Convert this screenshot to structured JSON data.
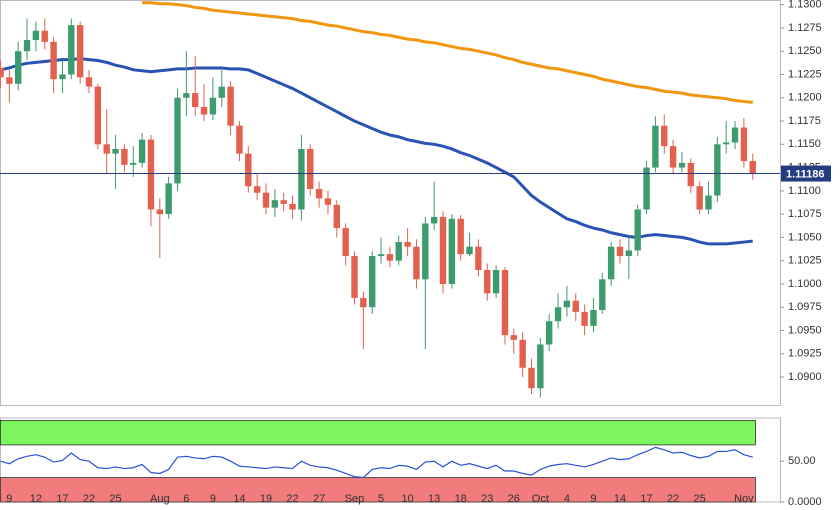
{
  "chart_data": [
    {
      "type": "candlestick",
      "categories": [
        null,
        "9",
        null,
        null,
        "12",
        null,
        null,
        "17",
        null,
        null,
        "22",
        null,
        null,
        "25",
        null,
        null,
        null,
        null,
        "Aug",
        null,
        null,
        "6",
        null,
        null,
        "9",
        null,
        null,
        "14",
        null,
        null,
        "19",
        null,
        null,
        "22",
        null,
        null,
        "27",
        null,
        null,
        null,
        "Sep",
        null,
        null,
        "5",
        null,
        null,
        "10",
        null,
        null,
        "13",
        null,
        null,
        "18",
        null,
        null,
        "23",
        null,
        null,
        "26",
        null,
        null,
        "Oct",
        null,
        null,
        "4",
        null,
        null,
        "9",
        null,
        null,
        "14",
        null,
        null,
        "17",
        null,
        null,
        "22",
        null,
        null,
        "25",
        null,
        null,
        null,
        null,
        "Nov",
        null
      ],
      "open": [
        1.1232,
        1.1222,
        1.1215,
        1.125,
        1.1262,
        1.1272,
        1.126,
        1.122,
        1.1225,
        1.1278,
        1.1222,
        1.1212,
        1.115,
        1.114,
        1.1145,
        1.1128,
        1.113,
        1.1155,
        1.108,
        1.1075,
        1.1108,
        1.12,
        1.1205,
        1.119,
        1.1182,
        1.12,
        1.1212,
        1.117,
        1.114,
        1.1105,
        1.1098,
        1.1082,
        1.109,
        1.1086,
        1.108,
        1.1145,
        1.1102,
        1.1092,
        1.1085,
        1.106,
        1.103,
        1.0985,
        1.0975,
        1.103,
        1.1032,
        1.1025,
        1.1045,
        1.104,
        1.1005,
        1.1065,
        1.1072,
        1.1,
        1.107,
        1.1032,
        1.104,
        1.1015,
        1.099,
        1.1015,
        1.0945,
        1.094,
        1.091,
        1.0888,
        1.0935,
        1.096,
        1.0975,
        1.0982,
        1.097,
        1.0955,
        1.0972,
        1.1005,
        1.104,
        1.103,
        1.1036,
        1.108,
        1.1125,
        1.117,
        1.1148,
        1.1125,
        1.113,
        1.1105,
        1.108,
        1.1095,
        1.115,
        1.1152,
        1.1168,
        1.1132
      ],
      "high": [
        1.124,
        1.123,
        1.126,
        1.1285,
        1.1282,
        1.1285,
        1.1265,
        1.124,
        1.1285,
        1.1282,
        1.123,
        1.1215,
        1.1188,
        1.116,
        1.115,
        1.1148,
        1.1162,
        1.116,
        1.1092,
        1.1115,
        1.121,
        1.125,
        1.1245,
        1.1215,
        1.1222,
        1.123,
        1.1218,
        1.1175,
        1.1148,
        1.1118,
        1.1108,
        1.1102,
        1.1098,
        1.1095,
        1.116,
        1.115,
        1.111,
        1.11,
        1.109,
        1.1065,
        1.1035,
        1.0992,
        1.1035,
        1.105,
        1.104,
        1.1052,
        1.106,
        1.1048,
        1.1072,
        1.111,
        1.1078,
        1.1075,
        1.1074,
        1.1055,
        1.1048,
        1.1022,
        1.102,
        1.1018,
        1.0952,
        1.0948,
        1.092,
        1.0942,
        1.0968,
        1.099,
        1.0998,
        1.099,
        1.0978,
        1.0985,
        1.1012,
        1.1045,
        1.1048,
        1.105,
        1.1085,
        1.1132,
        1.118,
        1.1182,
        1.1155,
        1.1142,
        1.1135,
        1.111,
        1.111,
        1.1158,
        1.1175,
        1.1175,
        1.1178,
        1.114
      ],
      "low": [
        1.121,
        1.1195,
        1.1208,
        1.124,
        1.125,
        1.1252,
        1.1205,
        1.1205,
        1.122,
        1.1215,
        1.1205,
        1.1145,
        1.1118,
        1.1102,
        1.112,
        1.1115,
        1.1125,
        1.1062,
        1.1028,
        1.107,
        1.11,
        1.118,
        1.118,
        1.1175,
        1.1176,
        1.119,
        1.116,
        1.1132,
        1.1098,
        1.109,
        1.1075,
        1.1072,
        1.1078,
        1.107,
        1.1068,
        1.1095,
        1.1082,
        1.1075,
        1.105,
        1.102,
        1.0978,
        1.093,
        1.0968,
        1.1022,
        1.1018,
        1.102,
        1.103,
        1.0995,
        1.093,
        1.1058,
        1.099,
        1.0995,
        1.1025,
        1.103,
        1.1008,
        1.0982,
        1.0985,
        1.0935,
        1.0925,
        1.09,
        1.0882,
        1.0878,
        1.0928,
        1.0952,
        1.0965,
        1.096,
        1.0945,
        1.0948,
        1.0968,
        1.0998,
        1.1022,
        1.1005,
        1.103,
        1.1075,
        1.112,
        1.114,
        1.1118,
        1.112,
        1.1098,
        1.1075,
        1.1075,
        1.1088,
        1.114,
        1.1145,
        1.1125,
        1.1112
      ],
      "close": [
        1.1222,
        1.1215,
        1.125,
        1.1262,
        1.1272,
        1.126,
        1.122,
        1.1225,
        1.1278,
        1.1222,
        1.1212,
        1.115,
        1.114,
        1.1145,
        1.1128,
        1.113,
        1.1155,
        1.108,
        1.1075,
        1.1108,
        1.12,
        1.1205,
        1.119,
        1.1182,
        1.12,
        1.1212,
        1.117,
        1.114,
        1.1105,
        1.1098,
        1.1082,
        1.109,
        1.1086,
        1.108,
        1.1145,
        1.1102,
        1.1092,
        1.1085,
        1.106,
        1.103,
        1.0985,
        1.0975,
        1.103,
        1.1032,
        1.1025,
        1.1045,
        1.104,
        1.1005,
        1.1065,
        1.1072,
        1.1,
        1.107,
        1.1032,
        1.104,
        1.1015,
        1.099,
        1.1015,
        1.0945,
        1.094,
        1.091,
        1.0888,
        1.0935,
        1.096,
        1.0975,
        1.0982,
        1.097,
        1.0955,
        1.0972,
        1.1005,
        1.104,
        1.103,
        1.1036,
        1.108,
        1.1125,
        1.117,
        1.1148,
        1.1125,
        1.113,
        1.1105,
        1.108,
        1.1095,
        1.115,
        1.1152,
        1.1168,
        1.1132,
        1.1119
      ],
      "up_color": "#3d9b70",
      "down_color": "#e2604d",
      "lines": [
        {
          "color": "#f2950f",
          "values": [
            null,
            null,
            null,
            null,
            null,
            null,
            null,
            null,
            null,
            null,
            null,
            null,
            null,
            null,
            null,
            null,
            1.1302,
            1.1302,
            1.1301,
            1.1301,
            1.13,
            1.1299,
            1.1297,
            1.1296,
            1.1294,
            1.1293,
            1.1292,
            1.1291,
            1.129,
            1.1289,
            1.1288,
            1.1287,
            1.1286,
            1.1285,
            1.1283,
            1.1282,
            1.128,
            1.1278,
            1.1277,
            1.1275,
            1.1273,
            1.1271,
            1.127,
            1.1268,
            1.1267,
            1.1265,
            1.1263,
            1.1262,
            1.126,
            1.1259,
            1.1257,
            1.1255,
            1.1253,
            1.1252,
            1.125,
            1.1248,
            1.1246,
            1.1243,
            1.1241,
            1.1238,
            1.1236,
            1.1234,
            1.1232,
            1.1231,
            1.1229,
            1.1227,
            1.1225,
            1.1223,
            1.122,
            1.1218,
            1.1216,
            1.1214,
            1.1212,
            1.1211,
            1.1209,
            1.1207,
            1.1206,
            1.1205,
            1.1203,
            1.1202,
            1.1201,
            1.12,
            1.1199,
            1.1197,
            1.1196,
            1.1195
          ]
        },
        {
          "color": "#2853b3",
          "values": [
            1.123,
            1.1232,
            1.1235,
            1.1237,
            1.1238,
            1.1239,
            1.124,
            1.1241,
            1.1241,
            1.1242,
            1.1241,
            1.124,
            1.1238,
            1.1235,
            1.1233,
            1.123,
            1.1229,
            1.1228,
            1.1229,
            1.123,
            1.1231,
            1.1231,
            1.1232,
            1.1232,
            1.1232,
            1.1232,
            1.1231,
            1.1231,
            1.123,
            1.1226,
            1.1222,
            1.1218,
            1.1214,
            1.121,
            1.1205,
            1.12,
            1.1195,
            1.119,
            1.1185,
            1.118,
            1.1175,
            1.1171,
            1.1167,
            1.1163,
            1.116,
            1.1158,
            1.1155,
            1.1153,
            1.1151,
            1.115,
            1.1148,
            1.1145,
            1.1141,
            1.1138,
            1.1134,
            1.113,
            1.1125,
            1.112,
            1.1115,
            1.1105,
            1.1095,
            1.1088,
            1.1082,
            1.1076,
            1.107,
            1.1067,
            1.1063,
            1.106,
            1.1058,
            1.1055,
            1.1053,
            1.1051,
            1.105,
            1.1052,
            1.1053,
            1.1052,
            1.1051,
            1.105,
            1.1048,
            1.1045,
            1.1043,
            1.1043,
            1.1043,
            1.1044,
            1.1045,
            1.1046
          ]
        }
      ],
      "last_price": {
        "value": 1.11186,
        "label": "1.11186"
      },
      "last_price_color": "#243c80",
      "ylim": [
        1.087,
        1.1305
      ],
      "yticks": [
        {
          "value": 1.09,
          "label": "1.0900"
        },
        {
          "value": 1.0925,
          "label": "1.0925"
        },
        {
          "value": 1.095,
          "label": "1.0950"
        },
        {
          "value": 1.0975,
          "label": "1.0975"
        },
        {
          "value": 1.1,
          "label": "1.1000"
        },
        {
          "value": 1.1025,
          "label": "1.1025"
        },
        {
          "value": 1.105,
          "label": "1.1050"
        },
        {
          "value": 1.1075,
          "label": "1.1075"
        },
        {
          "value": 1.11,
          "label": "1.1100"
        },
        {
          "value": 1.1125,
          "label": "1.1125"
        },
        {
          "value": 1.115,
          "label": "1.1150"
        },
        {
          "value": 1.1175,
          "label": "1.1175"
        },
        {
          "value": 1.12,
          "label": "1.1200"
        },
        {
          "value": 1.1225,
          "label": "1.1225"
        },
        {
          "value": 1.125,
          "label": "1.1250"
        },
        {
          "value": 1.1275,
          "label": "1.1275"
        },
        {
          "value": 1.13,
          "label": "1.1300"
        }
      ]
    },
    {
      "type": "line",
      "values": [
        50,
        47,
        53,
        56,
        58,
        55,
        49,
        51,
        60,
        52,
        50,
        42,
        41,
        43,
        41,
        42,
        46,
        36,
        35,
        40,
        55,
        56,
        54,
        53,
        56,
        55,
        50,
        44,
        43,
        42,
        41,
        43,
        42,
        41,
        50,
        45,
        43,
        42,
        39,
        35,
        31,
        30,
        40,
        42,
        41,
        45,
        44,
        40,
        49,
        50,
        43,
        50,
        45,
        47,
        44,
        41,
        45,
        38,
        38,
        35,
        33,
        40,
        44,
        46,
        47,
        45,
        43,
        46,
        50,
        54,
        52,
        53,
        58,
        62,
        67,
        64,
        60,
        61,
        57,
        54,
        56,
        62,
        62,
        64,
        58,
        55
      ],
      "color": "#2a4fd6",
      "zones": [
        {
          "from": 70,
          "to": 100,
          "color": "#7cf55f"
        },
        {
          "from": 0,
          "to": 30,
          "color": "#f27b7b"
        }
      ],
      "ylim": [
        0,
        103
      ],
      "yticks": [
        {
          "value": 50,
          "label": "50.00"
        },
        {
          "value": 0,
          "label": "0.0000"
        }
      ]
    }
  ]
}
